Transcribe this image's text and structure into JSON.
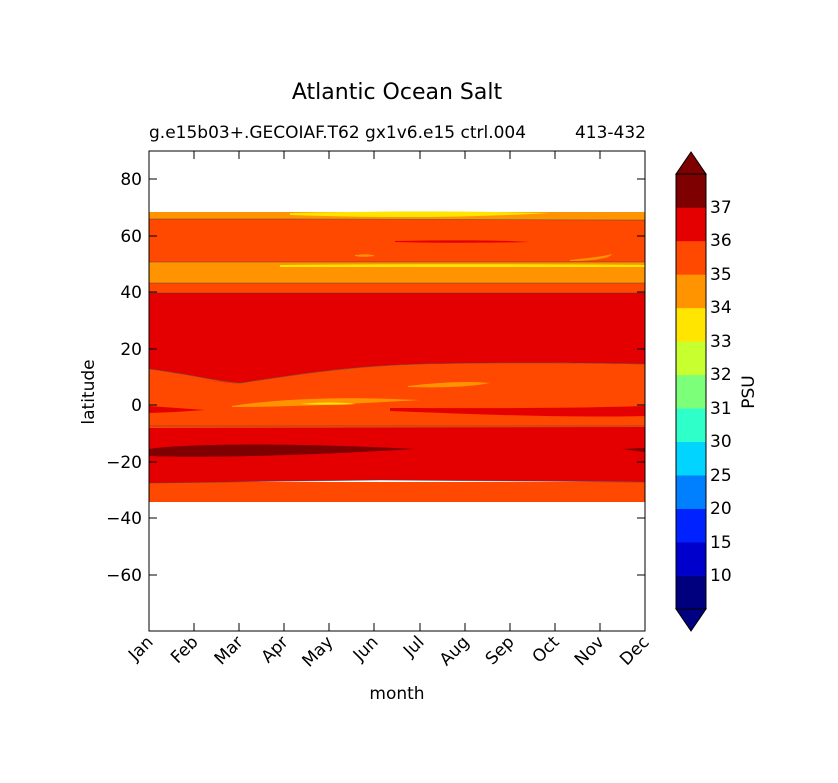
{
  "chart_data": {
    "type": "contour",
    "title": "Atlantic Ocean Salt",
    "subtitle_left": "g.e15b03+.GECOIAF.T62 gx1v6.e15 ctrl.004",
    "subtitle_right": "413-432",
    "xlabel": "month",
    "ylabel": "latitude",
    "x_ticks": [
      "Jan",
      "Feb",
      "Mar",
      "Apr",
      "May",
      "Jun",
      "Jul",
      "Aug",
      "Sep",
      "Oct",
      "Nov",
      "Dec"
    ],
    "xlim": [
      0,
      11
    ],
    "ylim": [
      -80,
      90
    ],
    "y_ticks": [
      80,
      60,
      40,
      20,
      0,
      -20,
      -40,
      -60
    ],
    "y_tick_labels": [
      "80",
      "60",
      "40",
      "20",
      "0",
      "−20",
      "−40",
      "−60"
    ],
    "colorbar": {
      "label": "PSU",
      "tick_labels": [
        "10",
        "15",
        "20",
        "25",
        "30",
        "31",
        "32",
        "33",
        "34",
        "35",
        "36",
        "37"
      ],
      "colors": [
        "#00007f",
        "#0000cd",
        "#0022ff",
        "#0080ff",
        "#00d4ff",
        "#2fffc8",
        "#7cff79",
        "#c8ff2f",
        "#ffe500",
        "#ff9400",
        "#ff4800",
        "#e40000",
        "#7f0000"
      ],
      "under_color": "#000080",
      "over_color": "#7f0000"
    },
    "bands": [
      {
        "range": "35-36",
        "lat_min": -34,
        "lat_max": -27,
        "color": "#ff4800"
      },
      {
        "range": "36-37",
        "lat_min": -27,
        "lat_max": -7,
        "color": "#e40000"
      },
      {
        "range": ">37",
        "lat_min": -19,
        "lat_max": -14,
        "months": [
          0,
          6
        ],
        "color": "#7f0000"
      },
      {
        "range": "35-36",
        "lat_min": -7,
        "lat_max": 13,
        "color": "#ff4800"
      },
      {
        "range": "34-35",
        "lat_min": 0,
        "lat_max": 2,
        "months": [
          2,
          6
        ],
        "color": "#ff9400"
      },
      {
        "range": "36-37",
        "lat_min": 13,
        "lat_max": 40,
        "color": "#e40000"
      },
      {
        "range": "35-36",
        "lat_min": 40,
        "lat_max": 43,
        "color": "#ff4800"
      },
      {
        "range": "34-35",
        "lat_min": 43,
        "lat_max": 51,
        "color": "#ff9400"
      },
      {
        "range": "35-36",
        "lat_min": 51,
        "lat_max": 66,
        "color": "#ff4800"
      },
      {
        "range": "34-35",
        "lat_min": 66,
        "lat_max": 69,
        "color": "#ff9400"
      },
      {
        "range": "33-34",
        "lat_min": 67,
        "lat_max": 69,
        "months": [
          3,
          9
        ],
        "color": "#ffe500"
      }
    ]
  }
}
